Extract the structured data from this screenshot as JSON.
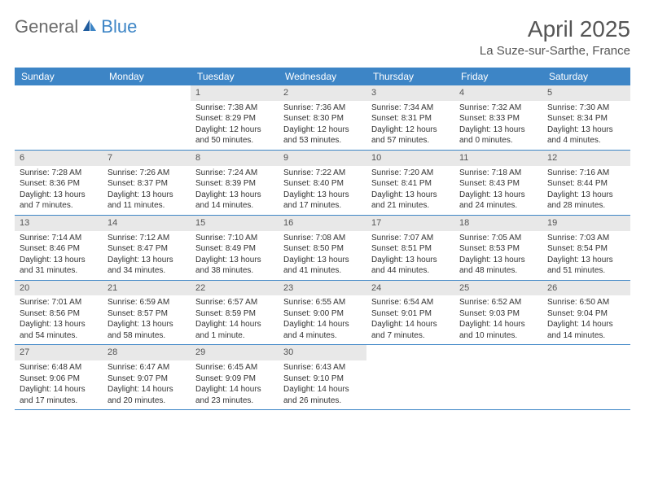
{
  "logo": {
    "text1": "General",
    "text2": "Blue"
  },
  "title": "April 2025",
  "location": "La Suze-sur-Sarthe, France",
  "colors": {
    "header_bg": "#3d85c6",
    "header_text": "#ffffff",
    "daynum_bg": "#e8e8e8",
    "text": "#555555",
    "body_text": "#333333"
  },
  "day_labels": [
    "Sunday",
    "Monday",
    "Tuesday",
    "Wednesday",
    "Thursday",
    "Friday",
    "Saturday"
  ],
  "weeks": [
    [
      null,
      null,
      {
        "n": "1",
        "sr": "7:38 AM",
        "ss": "8:29 PM",
        "dl": "12 hours and 50 minutes."
      },
      {
        "n": "2",
        "sr": "7:36 AM",
        "ss": "8:30 PM",
        "dl": "12 hours and 53 minutes."
      },
      {
        "n": "3",
        "sr": "7:34 AM",
        "ss": "8:31 PM",
        "dl": "12 hours and 57 minutes."
      },
      {
        "n": "4",
        "sr": "7:32 AM",
        "ss": "8:33 PM",
        "dl": "13 hours and 0 minutes."
      },
      {
        "n": "5",
        "sr": "7:30 AM",
        "ss": "8:34 PM",
        "dl": "13 hours and 4 minutes."
      }
    ],
    [
      {
        "n": "6",
        "sr": "7:28 AM",
        "ss": "8:36 PM",
        "dl": "13 hours and 7 minutes."
      },
      {
        "n": "7",
        "sr": "7:26 AM",
        "ss": "8:37 PM",
        "dl": "13 hours and 11 minutes."
      },
      {
        "n": "8",
        "sr": "7:24 AM",
        "ss": "8:39 PM",
        "dl": "13 hours and 14 minutes."
      },
      {
        "n": "9",
        "sr": "7:22 AM",
        "ss": "8:40 PM",
        "dl": "13 hours and 17 minutes."
      },
      {
        "n": "10",
        "sr": "7:20 AM",
        "ss": "8:41 PM",
        "dl": "13 hours and 21 minutes."
      },
      {
        "n": "11",
        "sr": "7:18 AM",
        "ss": "8:43 PM",
        "dl": "13 hours and 24 minutes."
      },
      {
        "n": "12",
        "sr": "7:16 AM",
        "ss": "8:44 PM",
        "dl": "13 hours and 28 minutes."
      }
    ],
    [
      {
        "n": "13",
        "sr": "7:14 AM",
        "ss": "8:46 PM",
        "dl": "13 hours and 31 minutes."
      },
      {
        "n": "14",
        "sr": "7:12 AM",
        "ss": "8:47 PM",
        "dl": "13 hours and 34 minutes."
      },
      {
        "n": "15",
        "sr": "7:10 AM",
        "ss": "8:49 PM",
        "dl": "13 hours and 38 minutes."
      },
      {
        "n": "16",
        "sr": "7:08 AM",
        "ss": "8:50 PM",
        "dl": "13 hours and 41 minutes."
      },
      {
        "n": "17",
        "sr": "7:07 AM",
        "ss": "8:51 PM",
        "dl": "13 hours and 44 minutes."
      },
      {
        "n": "18",
        "sr": "7:05 AM",
        "ss": "8:53 PM",
        "dl": "13 hours and 48 minutes."
      },
      {
        "n": "19",
        "sr": "7:03 AM",
        "ss": "8:54 PM",
        "dl": "13 hours and 51 minutes."
      }
    ],
    [
      {
        "n": "20",
        "sr": "7:01 AM",
        "ss": "8:56 PM",
        "dl": "13 hours and 54 minutes."
      },
      {
        "n": "21",
        "sr": "6:59 AM",
        "ss": "8:57 PM",
        "dl": "13 hours and 58 minutes."
      },
      {
        "n": "22",
        "sr": "6:57 AM",
        "ss": "8:59 PM",
        "dl": "14 hours and 1 minute."
      },
      {
        "n": "23",
        "sr": "6:55 AM",
        "ss": "9:00 PM",
        "dl": "14 hours and 4 minutes."
      },
      {
        "n": "24",
        "sr": "6:54 AM",
        "ss": "9:01 PM",
        "dl": "14 hours and 7 minutes."
      },
      {
        "n": "25",
        "sr": "6:52 AM",
        "ss": "9:03 PM",
        "dl": "14 hours and 10 minutes."
      },
      {
        "n": "26",
        "sr": "6:50 AM",
        "ss": "9:04 PM",
        "dl": "14 hours and 14 minutes."
      }
    ],
    [
      {
        "n": "27",
        "sr": "6:48 AM",
        "ss": "9:06 PM",
        "dl": "14 hours and 17 minutes."
      },
      {
        "n": "28",
        "sr": "6:47 AM",
        "ss": "9:07 PM",
        "dl": "14 hours and 20 minutes."
      },
      {
        "n": "29",
        "sr": "6:45 AM",
        "ss": "9:09 PM",
        "dl": "14 hours and 23 minutes."
      },
      {
        "n": "30",
        "sr": "6:43 AM",
        "ss": "9:10 PM",
        "dl": "14 hours and 26 minutes."
      },
      null,
      null,
      null
    ]
  ],
  "labels": {
    "sunrise": "Sunrise: ",
    "sunset": "Sunset: ",
    "daylight": "Daylight: "
  }
}
